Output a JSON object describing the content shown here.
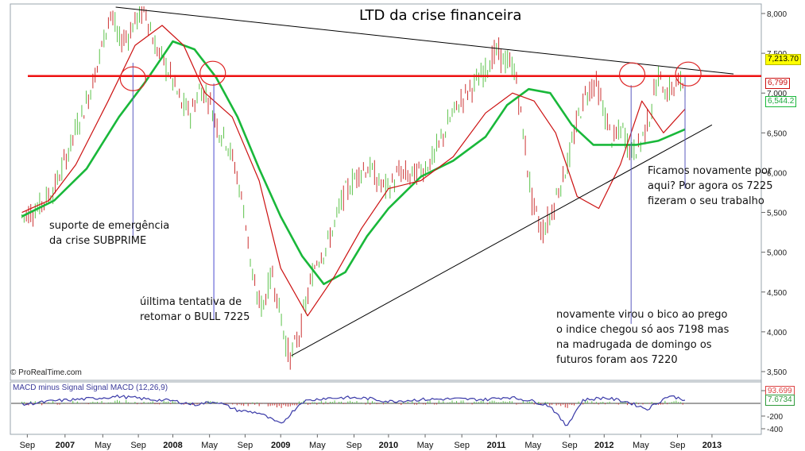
{
  "chart_data": {
    "type": "line",
    "title": "LTD da crise financeira",
    "source": "© ProRealTime.com",
    "x_labels": [
      "Sep",
      "2007",
      "May",
      "Sep",
      "2008",
      "May",
      "Sep",
      "2009",
      "May",
      "Sep",
      "2010",
      "May",
      "Sep",
      "2011",
      "May",
      "Sep",
      "2012",
      "May",
      "Sep",
      "2013"
    ],
    "price_axis": {
      "ticks": [
        "8,000",
        "7,500",
        "7,000",
        "6,500",
        "6,000",
        "5,500",
        "5,000",
        "4,500",
        "4,000",
        "3,500"
      ],
      "ylim": [
        3450,
        8100
      ]
    },
    "macd_axis": {
      "ticks": [
        "200",
        "-200",
        "-400"
      ],
      "ylim": [
        -420,
        260
      ]
    },
    "price_tags": {
      "last_price": "7,213.70",
      "ma_red": "6,799",
      "ma_green": "6,544.2",
      "macd_value": "7.6734",
      "macd_hidden": "93.699"
    },
    "series": [
      {
        "name": "Price",
        "x": [
          2006.6,
          2006.75,
          2006.9,
          2007.0,
          2007.1,
          2007.2,
          2007.3,
          2007.42,
          2007.5,
          2007.58,
          2007.67,
          2007.75,
          2007.83,
          2007.92,
          2008.0,
          2008.08,
          2008.17,
          2008.25,
          2008.33,
          2008.42,
          2008.5,
          2008.58,
          2008.67,
          2008.75,
          2008.83,
          2008.92,
          2009.0,
          2009.08,
          2009.17,
          2009.25,
          2009.33,
          2009.42,
          2009.5,
          2009.58,
          2009.67,
          2009.75,
          2009.83,
          2009.92,
          2010.0,
          2010.1,
          2010.2,
          2010.33,
          2010.42,
          2010.5,
          2010.58,
          2010.67,
          2010.75,
          2010.83,
          2010.92,
          2011.0,
          2011.08,
          2011.17,
          2011.25,
          2011.33,
          2011.42,
          2011.5,
          2011.58,
          2011.67,
          2011.75,
          2011.83,
          2011.92,
          2012.0,
          2012.08,
          2012.17,
          2012.25,
          2012.33,
          2012.42,
          2012.5,
          2012.58,
          2012.67,
          2012.75
        ],
        "values": [
          5450,
          5560,
          5800,
          6150,
          6550,
          6880,
          7350,
          8020,
          7650,
          7720,
          7950,
          8030,
          7600,
          7380,
          7150,
          6850,
          6750,
          7050,
          6950,
          6550,
          6400,
          6050,
          5450,
          4550,
          4300,
          4750,
          4200,
          3650,
          3950,
          4450,
          4900,
          5050,
          5350,
          5700,
          5900,
          6050,
          6050,
          5850,
          5800,
          6000,
          5950,
          6050,
          6200,
          6450,
          6700,
          6900,
          7050,
          7150,
          7350,
          7520,
          7400,
          7300,
          6500,
          5650,
          5250,
          5450,
          5800,
          6150,
          6650,
          7000,
          7150,
          6750,
          6400,
          6550,
          6250,
          6350,
          6700,
          7213.7,
          7000,
          7100,
          7150
        ]
      },
      {
        "name": "",
        "x": [
          2006.6,
          2006.85,
          2007.1,
          2007.4,
          2007.65,
          2007.9,
          2008.1,
          2008.3,
          2008.55,
          2008.8,
          2009.0,
          2009.25,
          2009.5,
          2009.75,
          2010.0,
          2010.3,
          2010.6,
          2010.9,
          2011.15,
          2011.35,
          2011.55,
          2011.75,
          2011.95,
          2012.15,
          2012.35,
          2012.55,
          2012.75
        ],
        "values": [
          5500,
          5650,
          6100,
          6900,
          7600,
          7850,
          7600,
          7000,
          6700,
          5900,
          4800,
          4200,
          4700,
          5300,
          5800,
          5900,
          6200,
          6750,
          7000,
          6900,
          6500,
          5700,
          5550,
          6100,
          6900,
          6500,
          6799
        ]
      },
      {
        "name": "",
        "x": [
          2006.6,
          2006.9,
          2007.2,
          2007.5,
          2007.75,
          2008.0,
          2008.2,
          2008.4,
          2008.6,
          2008.8,
          2009.0,
          2009.2,
          2009.4,
          2009.6,
          2009.8,
          2010.0,
          2010.3,
          2010.6,
          2010.9,
          2011.1,
          2011.3,
          2011.5,
          2011.7,
          2011.9,
          2012.1,
          2012.3,
          2012.5,
          2012.75
        ],
        "values": [
          5450,
          5650,
          6050,
          6700,
          7150,
          7650,
          7550,
          7200,
          6700,
          6050,
          5450,
          4950,
          4600,
          4750,
          5200,
          5550,
          5950,
          6150,
          6450,
          6850,
          7050,
          7000,
          6600,
          6350,
          6350,
          6350,
          6400,
          6544.2
        ]
      },
      {
        "name": "MACD minus Signal Signal MACD (12,26,9)",
        "x": [
          2006.6,
          2006.9,
          2007.2,
          2007.5,
          2007.8,
          2008.0,
          2008.2,
          2008.4,
          2008.6,
          2008.8,
          2009.0,
          2009.2,
          2009.4,
          2009.6,
          2009.8,
          2010.0,
          2010.3,
          2010.6,
          2010.9,
          2011.1,
          2011.3,
          2011.5,
          2011.65,
          2011.8,
          2012.0,
          2012.2,
          2012.4,
          2012.6,
          2012.75
        ],
        "values": [
          -20,
          40,
          70,
          110,
          60,
          40,
          -20,
          30,
          -110,
          -150,
          -330,
          30,
          80,
          90,
          80,
          30,
          60,
          70,
          60,
          100,
          50,
          -40,
          -360,
          50,
          90,
          30,
          -90,
          120,
          60
        ]
      }
    ]
  },
  "annotations": {
    "support": "suporte de emergência\nda crise SUBPRIME",
    "bull": "úiltima tentativa de\nretomar o BULL  7225",
    "again": "Ficamos novamente por\naqui? Por agora os 7225\nfizeram o seu trabalho",
    "turn": "novamente virou o bico ao prego\no indice chegou só aos 7198 mas\nna madrugada de domingo os\nfuturos  foram aos 7220"
  },
  "colors": {
    "up_candle": "#5cc24a",
    "down_candle": "#cc3333",
    "ma_red": "#cc1111",
    "ma_green": "#19b83a",
    "resistance": "#ee1111",
    "macd_line": "#3a3aa8",
    "tag_price": "#ffff00"
  }
}
